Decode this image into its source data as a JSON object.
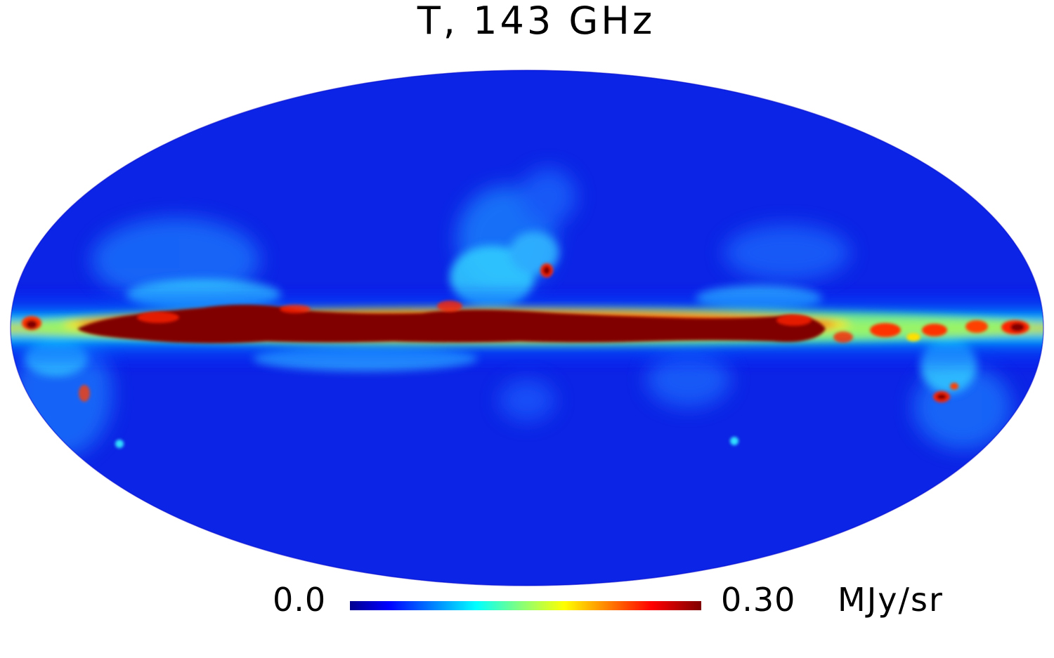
{
  "map": {
    "title": "T, 143 GHz",
    "projection": "Mollweide",
    "colormap": [
      "#00008f",
      "#0000ff",
      "#0080ff",
      "#00ffff",
      "#80ff80",
      "#ffff00",
      "#ff8000",
      "#ff0000",
      "#800000"
    ],
    "background_color": "#ffffff"
  },
  "colorbar": {
    "min_label": "0.0",
    "max_label": "0.30",
    "unit": "MJy/sr",
    "min_value": 0.0,
    "max_value": 0.3
  }
}
